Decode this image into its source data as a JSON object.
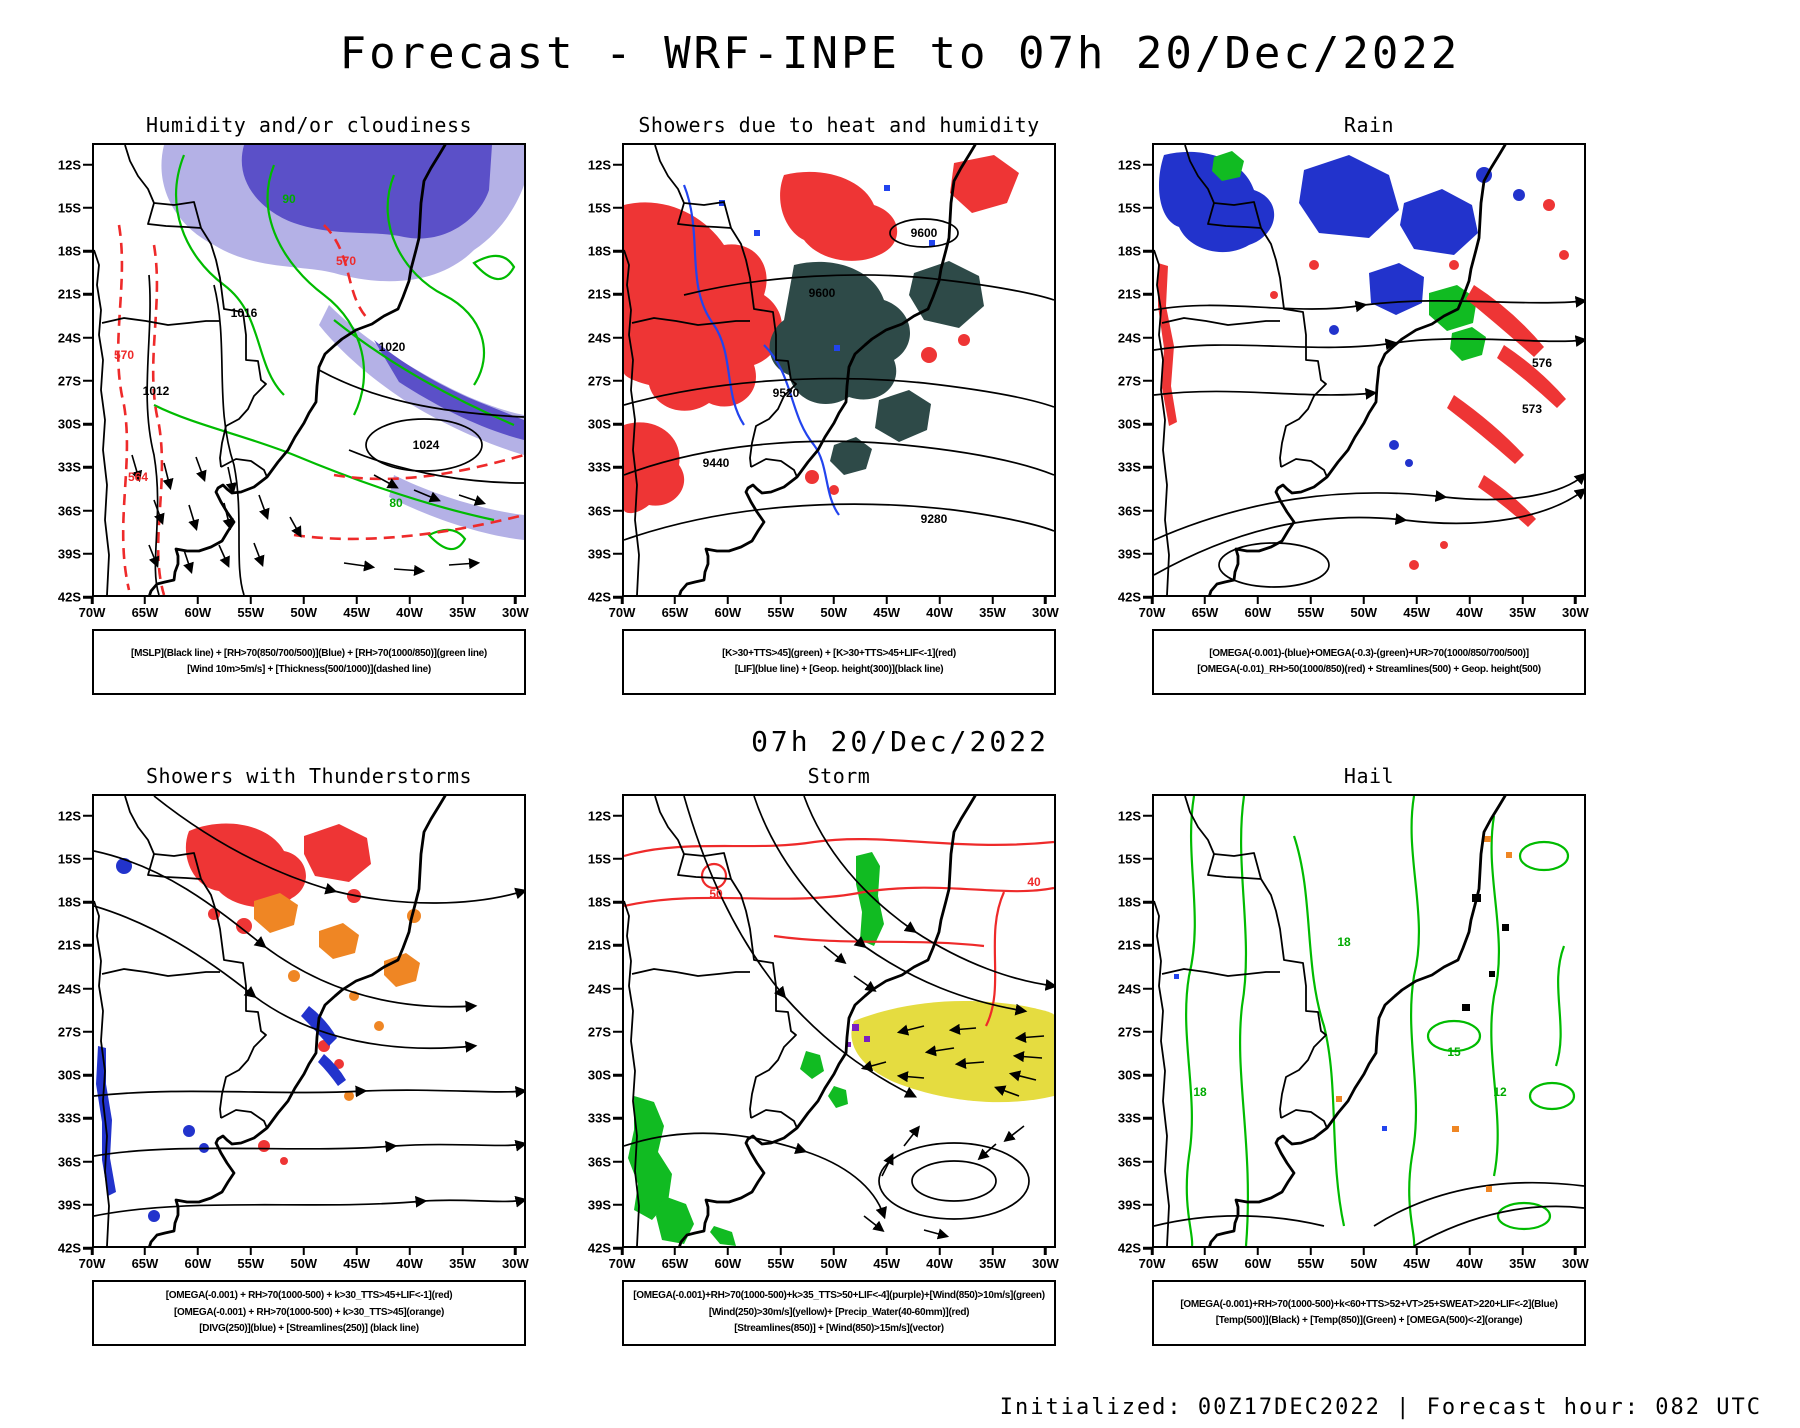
{
  "page": {
    "title": "Forecast - WRF-INPE to 07h 20/Dec/2022",
    "mid_heading": "07h 20/Dec/2022",
    "footer": "Initialized: 00Z17DEC2022 | Forecast hour: 082 UTC"
  },
  "axis": {
    "lat_ticks": [
      "12S",
      "15S",
      "18S",
      "21S",
      "24S",
      "27S",
      "30S",
      "33S",
      "36S",
      "39S",
      "42S"
    ],
    "lon_ticks": [
      "70W",
      "65W",
      "60W",
      "55W",
      "50W",
      "45W",
      "40W",
      "35W",
      "30W"
    ]
  },
  "colors": {
    "rh_blue_fill": "#5b50c8",
    "rh_blue_light": "#b4b1e6",
    "green_contour": "#00bb00",
    "red_contour": "#ee2a2a",
    "red_fill": "#ee3535",
    "darkslate_fill": "#2e4a48",
    "blue_fill": "#2233cc",
    "blue_line": "#2244ee",
    "orange_fill": "#ef8624",
    "yellow_fill": "#e5dc40",
    "purple_fill": "#7a1fc0",
    "black": "#000000"
  },
  "panels": [
    {
      "id": "humidity",
      "title": "Humidity and/or cloudiness",
      "legend": [
        "[MSLP](Black line) + [RH>70(850/700/500)](Blue) + [RH>70(1000/850)](green line)",
        "[Wind 10m>5m/s] + [Thickness(500/1000)](dashed line)"
      ],
      "labels": {
        "mslp": [
          "1012",
          "1016",
          "1020",
          "1024"
        ],
        "thickness": [
          "570",
          "564"
        ],
        "rh": [
          "90",
          "80"
        ]
      }
    },
    {
      "id": "heat-showers",
      "title": "Showers due to heat and humidity",
      "legend": [
        "[K>30+TTS>45](green) + [K>30+TTS>45+LIF<-1](red)",
        "[LIF](blue line) + [Geop. height(300)](black line)"
      ],
      "labels": {
        "geop": [
          "9600",
          "9520",
          "9440",
          "9280"
        ]
      }
    },
    {
      "id": "rain",
      "title": "Rain",
      "legend": [
        "[OMEGA(-0.001)-(blue)+OMEGA(-0.3)-(green)+UR>70(1000/850/700/500)]",
        "[OMEGA(-0.01)_RH>50(1000/850)(red) + Streamlines(500) + Geop. height(500)"
      ],
      "labels": {
        "geop": [
          "576",
          "573"
        ]
      }
    },
    {
      "id": "thunderstorms",
      "title": "Showers with Thunderstorms",
      "legend": [
        "[OMEGA(-0.001) + RH>70(1000-500) + k>30_TTS>45+LIF<-1](red)",
        "[OMEGA(-0.001) + RH>70(1000-500) + k>30_TTS>45](orange)",
        "[DIVG(250)](blue) + [Streamlines(250)] (black line)"
      ],
      "labels": {}
    },
    {
      "id": "storm",
      "title": "Storm",
      "legend": [
        "[OMEGA(-0.001)+RH>70(1000-500)+k>35_TTS>50+LIF<-4](purple)+[Wind(850)>10m/s](green)",
        "[Wind(250)>30m/s](yellow)+ [Precip_Water(40-60mm)](red)",
        "[Streamlines(850)] + [Wind(850)>15m/s](vector)"
      ],
      "labels": {
        "precip": [
          "40",
          "50"
        ]
      }
    },
    {
      "id": "hail",
      "title": "Hail",
      "legend": [
        "[OMEGA(-0.001)+RH>70(1000-500)+k<60+TTS>52+VT>25+SWEAT>220+LIF<-2](Blue)",
        "[Temp(500)](Black) + [Temp(850)](Green) + [OMEGA(500)<-2](orange)"
      ],
      "labels": {
        "temp": [
          "18",
          "15",
          "12"
        ]
      }
    }
  ]
}
